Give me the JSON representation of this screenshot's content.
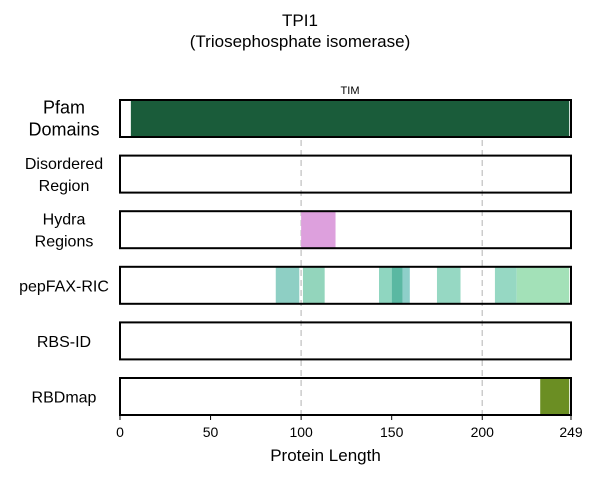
{
  "title": "TPI1",
  "subtitle": "(Triosephosphate isomerase)",
  "chart_data": {
    "type": "bar",
    "protein_length": 249,
    "xlabel": "Protein Length",
    "xticks": [
      0,
      50,
      100,
      150,
      200,
      249
    ],
    "grid_x": [
      100,
      200
    ],
    "tracks": [
      {
        "label_lines": [
          "Pfam",
          "Domains"
        ],
        "big": true,
        "segments": [
          {
            "start": 6,
            "end": 248,
            "color": "#1a5c3a",
            "label": "TIM"
          }
        ]
      },
      {
        "label_lines": [
          "Disordered",
          "Region"
        ],
        "segments": []
      },
      {
        "label_lines": [
          "Hydra",
          "Regions"
        ],
        "segments": [
          {
            "start": 100,
            "end": 119,
            "color": "#dda0dd"
          }
        ]
      },
      {
        "label_lines": [
          "pepFAX-RIC"
        ],
        "segments": [
          {
            "start": 86,
            "end": 99,
            "color": "#8ecfc4"
          },
          {
            "start": 101,
            "end": 113,
            "color": "#93d5bc"
          },
          {
            "start": 143,
            "end": 150,
            "color": "#8fd6c0"
          },
          {
            "start": 150,
            "end": 156,
            "color": "#5ab8a2"
          },
          {
            "start": 156,
            "end": 160,
            "color": "#8ecfc9"
          },
          {
            "start": 175,
            "end": 188,
            "color": "#96d8c3"
          },
          {
            "start": 207,
            "end": 219,
            "color": "#96d8c3"
          },
          {
            "start": 219,
            "end": 248,
            "color": "#a3e1b8"
          }
        ]
      },
      {
        "label_lines": [
          "RBS-ID"
        ],
        "segments": []
      },
      {
        "label_lines": [
          "RBDmap"
        ],
        "segments": [
          {
            "start": 232,
            "end": 248,
            "color": "#6b8e23"
          }
        ]
      }
    ]
  }
}
